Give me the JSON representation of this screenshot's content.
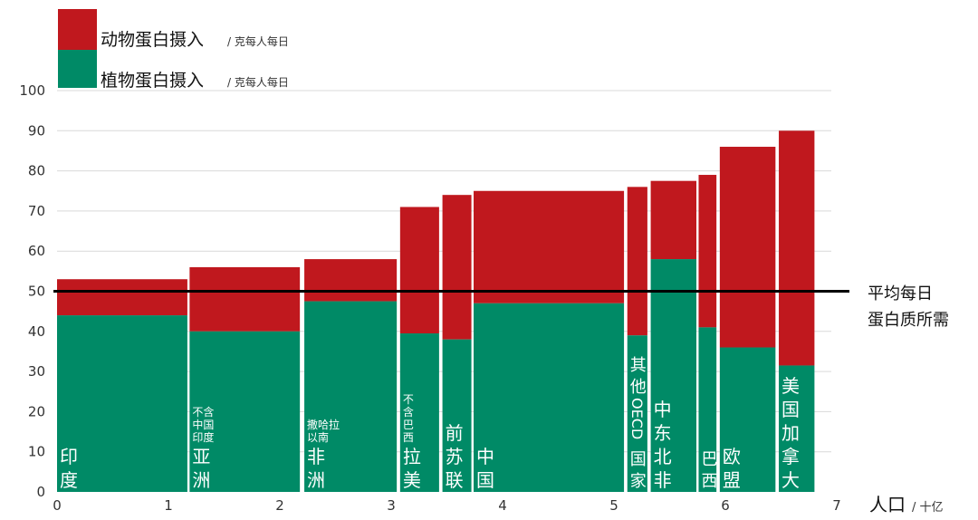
{
  "chart_data": {
    "type": "bar",
    "variant": "variable-width stacked bar (marimekko)",
    "x_axis": {
      "label": "人口",
      "unit": "/ 十亿",
      "range": [
        0,
        7
      ],
      "ticks": [
        "0",
        "1",
        "2",
        "3",
        "4",
        "5",
        "6",
        "7"
      ]
    },
    "y_axis": {
      "range": [
        0,
        100
      ],
      "ticks": [
        "0",
        "10",
        "20",
        "30",
        "40",
        "50",
        "60",
        "70",
        "80",
        "90",
        "100"
      ],
      "grid": true
    },
    "legend": {
      "placement": "top-left",
      "items": [
        {
          "label": "动物蛋白摄入",
          "unit": "/ 克每人每日",
          "color": "#c0181e"
        },
        {
          "label": "植物蛋白摄入",
          "unit": "/ 克每人每日",
          "color": "#008a66"
        }
      ]
    },
    "reference_line": {
      "value": 50,
      "label_lines": [
        "平均每日",
        "蛋白质所需"
      ],
      "color": "#000000"
    },
    "regions": [
      {
        "label_lines": [
          "印",
          "度"
        ],
        "small_lines": [],
        "x_start": 0.0,
        "x_end": 1.17,
        "plant": 44,
        "animal": 9
      },
      {
        "label_lines": [
          "亚",
          "洲"
        ],
        "small_lines": [
          "不含",
          "中国",
          "印度"
        ],
        "x_start": 1.19,
        "x_end": 2.18,
        "plant": 40,
        "animal": 16
      },
      {
        "label_lines": [
          "非",
          "洲"
        ],
        "small_lines": [
          "撒哈拉",
          "以南"
        ],
        "x_start": 2.22,
        "x_end": 3.05,
        "plant": 47.5,
        "animal": 10.5
      },
      {
        "label_lines": [
          "拉",
          "美"
        ],
        "small_lines": [
          "不",
          "含",
          "巴",
          "西"
        ],
        "x_start": 3.08,
        "x_end": 3.43,
        "plant": 39.5,
        "animal": 31.5
      },
      {
        "label_lines": [
          "前",
          "苏",
          "联"
        ],
        "small_lines": [],
        "x_start": 3.46,
        "x_end": 3.72,
        "plant": 38,
        "animal": 36
      },
      {
        "label_lines": [
          "中",
          "国"
        ],
        "small_lines": [],
        "x_start": 3.74,
        "x_end": 5.09,
        "plant": 47,
        "animal": 28
      },
      {
        "label_lines": [
          "其",
          "他",
          "OECD",
          "国",
          "家"
        ],
        "small_lines": [],
        "x_start": 5.12,
        "x_end": 5.3,
        "plant": 39,
        "animal": 37
      },
      {
        "label_lines": [
          "中",
          "东",
          "北",
          "非"
        ],
        "small_lines": [],
        "x_start": 5.33,
        "x_end": 5.74,
        "plant": 58,
        "animal": 19.5
      },
      {
        "label_lines": [
          "巴",
          "西"
        ],
        "small_lines": [],
        "x_start": 5.76,
        "x_end": 5.92,
        "plant": 41,
        "animal": 38
      },
      {
        "label_lines": [
          "欧",
          "盟"
        ],
        "small_lines": [],
        "x_start": 5.95,
        "x_end": 6.45,
        "plant": 36,
        "animal": 50
      },
      {
        "label_lines": [
          "美",
          "国",
          "加",
          "拿",
          "大"
        ],
        "small_lines": [],
        "x_start": 6.48,
        "x_end": 6.8,
        "plant": 31.5,
        "animal": 58.5
      }
    ]
  }
}
